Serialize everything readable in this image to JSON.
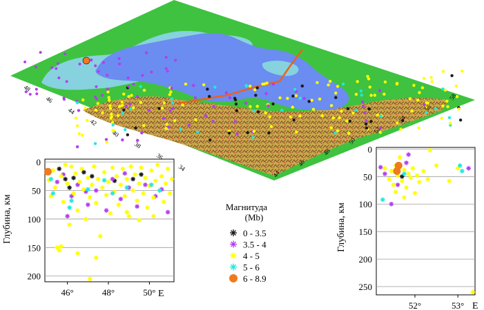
{
  "colors": {
    "land": "#3fc23f",
    "lowland": "#86d2de",
    "sea": "#6b8cf0",
    "mountain": "#b5a255",
    "fault": "#e8631c",
    "gridline": "#9a9a9a"
  },
  "legend": {
    "title": "Магнитуда",
    "subtitle": "(Mb)",
    "items": [
      {
        "label": "0 - 3.5",
        "marker": "star",
        "color": "#1a1a1a"
      },
      {
        "label": "3.5 - 4",
        "marker": "star",
        "color": "#b43cf0"
      },
      {
        "label": "4 - 5",
        "marker": "star",
        "color": "#ffff00"
      },
      {
        "label": "5 - 6",
        "marker": "star",
        "color": "#22e8e0"
      },
      {
        "label": "6 - 8.9",
        "marker": "circle",
        "color": "#f07a1e"
      }
    ]
  },
  "map": {
    "lat_ticks": [
      "48",
      "46",
      "44",
      "42",
      "40",
      "38",
      "36",
      "34"
    ],
    "lon_ticks": [
      "44",
      "46",
      "48",
      "50",
      "52",
      "54",
      "56",
      "58"
    ]
  },
  "chart_data": [
    {
      "type": "scatter",
      "title": "",
      "xlabel": "E",
      "ylabel": "Глубина, км",
      "xlim": [
        44.9,
        51.2
      ],
      "ylim": [
        210,
        -5
      ],
      "xticks": [
        46,
        48,
        50
      ],
      "xtick_labels": [
        "46°",
        "48°",
        "50°"
      ],
      "yticks": [
        0,
        50,
        100,
        150,
        200
      ],
      "ytick_labels": [
        "0",
        "50",
        "100",
        "150",
        "200"
      ],
      "grid": "horizontal",
      "series": [
        {
          "name": "0 - 3.5",
          "points": [
            [
              45.6,
              12
            ],
            [
              45.9,
              30
            ],
            [
              46.1,
              45
            ],
            [
              46.3,
              28
            ],
            [
              46.8,
              18
            ],
            [
              47.2,
              25
            ],
            [
              48.3,
              33
            ],
            [
              49.2,
              30
            ],
            [
              49.6,
              22
            ]
          ]
        },
        {
          "name": "3.5 - 4",
          "points": [
            [
              45.5,
              35
            ],
            [
              45.8,
              22
            ],
            [
              46.2,
              60
            ],
            [
              46.0,
              95
            ],
            [
              46.5,
              40
            ],
            [
              47.0,
              75
            ],
            [
              47.4,
              50
            ],
            [
              47.9,
              85
            ],
            [
              48.2,
              30
            ],
            [
              48.6,
              65
            ],
            [
              49.0,
              45
            ],
            [
              49.4,
              78
            ],
            [
              49.8,
              40
            ],
            [
              50.3,
              60
            ],
            [
              50.6,
              48
            ],
            [
              50.9,
              88
            ],
            [
              46.9,
              52
            ],
            [
              48.8,
              20
            ]
          ]
        },
        {
          "name": "4 - 5",
          "points": [
            [
              45.1,
              32
            ],
            [
              45.2,
              60
            ],
            [
              45.3,
              15
            ],
            [
              45.4,
              45
            ],
            [
              45.5,
              150
            ],
            [
              45.6,
              155
            ],
            [
              45.7,
              25
            ],
            [
              45.8,
              70
            ],
            [
              45.9,
              5
            ],
            [
              46.0,
              38
            ],
            [
              46.1,
              110
            ],
            [
              46.2,
              8
            ],
            [
              46.3,
              55
            ],
            [
              46.4,
              20
            ],
            [
              46.5,
              85
            ],
            [
              46.6,
              35
            ],
            [
              46.7,
              12
            ],
            [
              46.8,
              48
            ],
            [
              46.9,
              100
            ],
            [
              47.0,
              28
            ],
            [
              47.1,
              62
            ],
            [
              47.1,
              205
            ],
            [
              47.2,
              40
            ],
            [
              47.3,
              8
            ],
            [
              47.4,
              72
            ],
            [
              47.5,
              30
            ],
            [
              47.6,
              130
            ],
            [
              47.7,
              45
            ],
            [
              47.8,
              18
            ],
            [
              47.9,
              58
            ],
            [
              48.0,
              35
            ],
            [
              48.1,
              90
            ],
            [
              48.2,
              10
            ],
            [
              48.3,
              52
            ],
            [
              48.4,
              25
            ],
            [
              48.5,
              75
            ],
            [
              48.6,
              40
            ],
            [
              48.7,
              12
            ],
            [
              48.8,
              60
            ],
            [
              48.9,
              30
            ],
            [
              49.0,
              95
            ],
            [
              49.1,
              8
            ],
            [
              49.2,
              50
            ],
            [
              49.3,
              22
            ],
            [
              49.4,
              68
            ],
            [
              49.5,
              38
            ],
            [
              49.6,
              10
            ],
            [
              49.7,
              55
            ],
            [
              49.8,
              28
            ],
            [
              49.9,
              80
            ],
            [
              50.0,
              42
            ],
            [
              50.1,
              15
            ],
            [
              50.2,
              62
            ],
            [
              50.3,
              33
            ],
            [
              50.4,
              5
            ],
            [
              50.5,
              50
            ],
            [
              50.6,
              25
            ],
            [
              50.7,
              70
            ],
            [
              50.8,
              38
            ],
            [
              50.9,
              12
            ],
            [
              51.0,
              55
            ],
            [
              51.1,
              30
            ],
            [
              47.4,
              168
            ],
            [
              46.5,
              160
            ],
            [
              45.7,
              148
            ],
            [
              48.9,
              88
            ],
            [
              50.2,
              95
            ],
            [
              49.5,
              102
            ]
          ]
        },
        {
          "name": "5 - 6",
          "points": [
            [
              45.2,
              30
            ],
            [
              45.3,
              55
            ],
            [
              46.2,
              68
            ],
            [
              46.1,
              80
            ],
            [
              47.0,
              48
            ],
            [
              47.8,
              32
            ],
            [
              48.2,
              55
            ],
            [
              48.9,
              45
            ],
            [
              50.1,
              40
            ],
            [
              50.5,
              50
            ]
          ]
        },
        {
          "name": "6 - 8.9",
          "points": [
            [
              45.05,
              17
            ]
          ]
        }
      ]
    },
    {
      "type": "scatter",
      "title": "",
      "xlabel": "E",
      "ylabel": "Глубина, км",
      "xlim": [
        51.1,
        53.4
      ],
      "ylim": [
        265,
        -3
      ],
      "xticks": [
        52,
        53
      ],
      "xtick_labels": [
        "52°",
        "53°"
      ],
      "yticks": [
        0,
        50,
        100,
        150,
        200,
        250
      ],
      "ytick_labels": [
        "0",
        "50",
        "100",
        "150",
        "200",
        "250"
      ],
      "grid": "horizontal",
      "series": [
        {
          "name": "0 - 3.5",
          "points": [
            [
              51.6,
              42
            ],
            [
              51.7,
              50
            ]
          ]
        },
        {
          "name": "3.5 - 4",
          "points": [
            [
              51.2,
              33
            ],
            [
              51.3,
              45
            ],
            [
              51.45,
              100
            ],
            [
              51.6,
              65
            ],
            [
              51.8,
              25
            ],
            [
              51.85,
              10
            ],
            [
              53.25,
              35
            ]
          ]
        },
        {
          "name": "4 - 5",
          "points": [
            [
              51.3,
              35
            ],
            [
              51.4,
              55
            ],
            [
              51.45,
              40
            ],
            [
              51.5,
              65
            ],
            [
              51.55,
              30
            ],
            [
              51.6,
              48
            ],
            [
              51.65,
              15
            ],
            [
              51.7,
              58
            ],
            [
              51.75,
              38
            ],
            [
              51.8,
              70
            ],
            [
              51.85,
              45
            ],
            [
              51.9,
              52
            ],
            [
              51.95,
              35
            ],
            [
              52.0,
              80
            ],
            [
              52.05,
              48
            ],
            [
              52.1,
              60
            ],
            [
              52.2,
              40
            ],
            [
              52.3,
              55
            ],
            [
              52.35,
              2
            ],
            [
              52.5,
              30
            ],
            [
              52.8,
              58
            ],
            [
              53.0,
              35
            ],
            [
              53.35,
              260
            ],
            [
              51.55,
              78
            ],
            [
              51.75,
              88
            ]
          ]
        },
        {
          "name": "5 - 6",
          "points": [
            [
              51.25,
              92
            ],
            [
              51.55,
              40
            ],
            [
              51.75,
              45
            ],
            [
              53.05,
              30
            ],
            [
              53.1,
              40
            ]
          ]
        },
        {
          "name": "6 - 8.9",
          "points": [
            [
              51.62,
              30
            ],
            [
              51.58,
              40
            ]
          ]
        }
      ]
    }
  ]
}
